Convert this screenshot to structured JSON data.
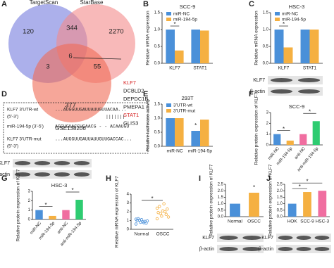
{
  "panels": [
    "A",
    "B",
    "C",
    "D",
    "E",
    "F",
    "G",
    "H",
    "I",
    "J"
  ],
  "venn": {
    "sets": [
      "TargetScan",
      "StarBase",
      "GSE138206"
    ],
    "regions": [
      "120",
      "344",
      "2270",
      "3",
      "6",
      "55",
      "377"
    ],
    "genes": [
      "KLF7",
      "DCBLD2",
      "DEPDC1B",
      "PMEPA1",
      "STAT1",
      "GLIS3"
    ],
    "highlight": [
      "KLF7",
      "STAT1"
    ]
  },
  "sequences": {
    "rows": [
      [
        "KLF7 3'UTR-wt",
        "...AUGGUUGAUUAUUGUUACAA..."
      ],
      [
        "(5'-3')",
        "|||||||"
      ],
      [
        "miR-194-5p (3'-5')",
        "AGGUGUACCUCAACG - - ACAAUGU"
      ],
      [
        "KLF7 3'UTR-mut",
        "...AUGGUUGAUUAUUGUUGACCAC..."
      ],
      [
        "(5'-3')",
        ""
      ]
    ]
  },
  "blots": [
    {
      "labels": [
        "KLF7",
        "β-actin"
      ]
    },
    {
      "labels": [
        "KLF7",
        "β-actin"
      ]
    },
    {
      "labels": [
        "KLF7",
        "β-actin"
      ]
    },
    {
      "labels": [
        "KLF7",
        "β-actin"
      ]
    }
  ],
  "chart_data": [
    {
      "type": "bar",
      "title": "SCC-9",
      "ylabel": "Relative mRNA expression",
      "categories": [
        "KLF7",
        "STAT1"
      ],
      "series": [
        {
          "name": "miR-NC",
          "color": "#4a90d9",
          "values": [
            1.0,
            1.0
          ]
        },
        {
          "name": "miR-194-5p",
          "color": "#f5b041",
          "values": [
            0.38,
            0.97
          ]
        }
      ],
      "ylim": [
        0,
        1.5
      ],
      "yticks": [
        {
          "value": 0,
          "label": "0.0"
        },
        {
          "value": 0.5,
          "label": "0.5"
        },
        {
          "value": 1,
          "label": "1.0"
        },
        {
          "value": 1.5,
          "label": "1.5"
        }
      ],
      "significance": [
        {
          "text": "*",
          "between": [
            0,
            1
          ]
        }
      ]
    },
    {
      "type": "bar",
      "title": "HSC-3",
      "ylabel": "Relative mRNA expression",
      "categories": [
        "KLF7",
        "STAT1"
      ],
      "series": [
        {
          "name": "miR-NC",
          "color": "#4a90d9",
          "values": [
            1.0,
            1.0
          ]
        },
        {
          "name": "miR-194-5p",
          "color": "#f5b041",
          "values": [
            0.47,
            1.0
          ]
        }
      ],
      "ylim": [
        0,
        1.5
      ],
      "yticks": [
        {
          "value": 0,
          "label": "0.0"
        },
        {
          "value": 0.5,
          "label": "0.5"
        },
        {
          "value": 1,
          "label": "1.0"
        },
        {
          "value": 1.5,
          "label": "1.5"
        }
      ],
      "significance": [
        {
          "text": "*",
          "between": [
            0,
            1
          ]
        }
      ]
    },
    {
      "type": "bar",
      "title": "293T",
      "ylabel": "Relative luciferase activity",
      "categories": [
        "miR-NC",
        "miR-194-5p"
      ],
      "series": [
        {
          "name": "3'UTR-wt",
          "color": "#4a90d9",
          "values": [
            1.0,
            0.55
          ]
        },
        {
          "name": "3'UTR-mut",
          "color": "#f5b041",
          "values": [
            1.0,
            0.95
          ]
        }
      ],
      "ylim": [
        0,
        1.5
      ],
      "yticks": [
        {
          "value": 0,
          "label": "0.0"
        },
        {
          "value": 0.5,
          "label": "0.5"
        },
        {
          "value": 1,
          "label": "1.0"
        },
        {
          "value": 1.5,
          "label": "1.5"
        }
      ],
      "significance": [
        {
          "text": "*",
          "between": [
            2,
            2
          ]
        }
      ]
    },
    {
      "type": "bar",
      "title": "SCC-9",
      "ylabel": "Relative protein expression of KLF7",
      "categories": [
        "miR-NC",
        "miR-194-5p",
        "anti-NC",
        "anti-miR-194-5p"
      ],
      "values": [
        1.0,
        0.4,
        1.0,
        2.2
      ],
      "colors": [
        "#4a90d9",
        "#f5b041",
        "#f06ea0",
        "#2ecc71"
      ],
      "x_label_rotation": -50,
      "ylim": [
        0,
        3
      ],
      "yticks": [
        0,
        1,
        2,
        3
      ],
      "significance": [
        {
          "text": "*",
          "between": [
            0,
            1
          ]
        },
        {
          "text": "*",
          "between": [
            2,
            3
          ]
        }
      ]
    },
    {
      "type": "bar",
      "title": "HSC-3",
      "ylabel": "Relative protein expression of KLF7",
      "categories": [
        "miR-NC",
        "miR-194-5p",
        "anti-NC",
        "anti-miR-194-5p"
      ],
      "values": [
        1.0,
        0.38,
        1.0,
        2.1
      ],
      "colors": [
        "#4a90d9",
        "#f5b041",
        "#f06ea0",
        "#2ecc71"
      ],
      "x_label_rotation": -50,
      "ylim": [
        0,
        3
      ],
      "yticks": [
        0,
        1,
        2,
        3
      ],
      "significance": [
        {
          "text": "*",
          "between": [
            0,
            1
          ]
        },
        {
          "text": "*",
          "between": [
            2,
            3
          ]
        }
      ]
    },
    {
      "type": "strip",
      "ylabel": "Relative mRNA expression of KLF7",
      "categories": [
        "Normal",
        "OSCC"
      ],
      "series": [
        {
          "name": "Normal",
          "color": "#4a90d9",
          "values": [
            0.6,
            0.8,
            0.9,
            1.0,
            1.1,
            0.7,
            1.2,
            0.85,
            0.95,
            1.05,
            0.75,
            1.15
          ]
        },
        {
          "name": "OSCC",
          "color": "#f5b041",
          "values": [
            1.2,
            1.5,
            1.7,
            1.9,
            2.1,
            2.3,
            2.6,
            2.9,
            1.4,
            1.8,
            2.0,
            2.4
          ]
        }
      ],
      "ylim": [
        0,
        4
      ],
      "yticks": [
        0,
        1,
        2,
        3,
        4
      ],
      "significance": [
        {
          "text": "*",
          "between": [
            0,
            1
          ]
        }
      ]
    },
    {
      "type": "bar",
      "ylabel": "Relative protein expression of KLF7",
      "categories": [
        "Normal",
        "OSCC"
      ],
      "values": [
        1.0,
        1.85
      ],
      "colors": [
        "#4a90d9",
        "#f5b041"
      ],
      "ylim": [
        0,
        2.5
      ],
      "yticks": [
        {
          "value": 0,
          "label": "0.0"
        },
        {
          "value": 0.5,
          "label": "0.5"
        },
        {
          "value": 1,
          "label": "1.0"
        },
        {
          "value": 1.5,
          "label": "1.5"
        },
        {
          "value": 2,
          "label": "2.0"
        },
        {
          "value": 2.5,
          "label": "2.5"
        }
      ],
      "significance": [
        {
          "text": "*",
          "between": [
            1,
            1
          ]
        }
      ]
    },
    {
      "type": "bar",
      "ylabel": "Relative protein expression of KLF7",
      "categories": [
        "HOK",
        "SCC-9",
        "HSC-3"
      ],
      "values": [
        1.0,
        1.9,
        2.0
      ],
      "colors": [
        "#4a90d9",
        "#f5b041",
        "#f06ea0"
      ],
      "ylim": [
        0,
        2.5
      ],
      "yticks": [
        {
          "value": 0,
          "label": "0.0"
        },
        {
          "value": 0.5,
          "label": "0.5"
        },
        {
          "value": 1,
          "label": "1.0"
        },
        {
          "value": 1.5,
          "label": "1.5"
        },
        {
          "value": 2,
          "label": "2.0"
        },
        {
          "value": 2.5,
          "label": "2.5"
        }
      ],
      "significance": [
        {
          "text": "*",
          "between": [
            0,
            1
          ]
        },
        {
          "text": "*",
          "between": [
            0,
            2
          ]
        }
      ]
    }
  ]
}
